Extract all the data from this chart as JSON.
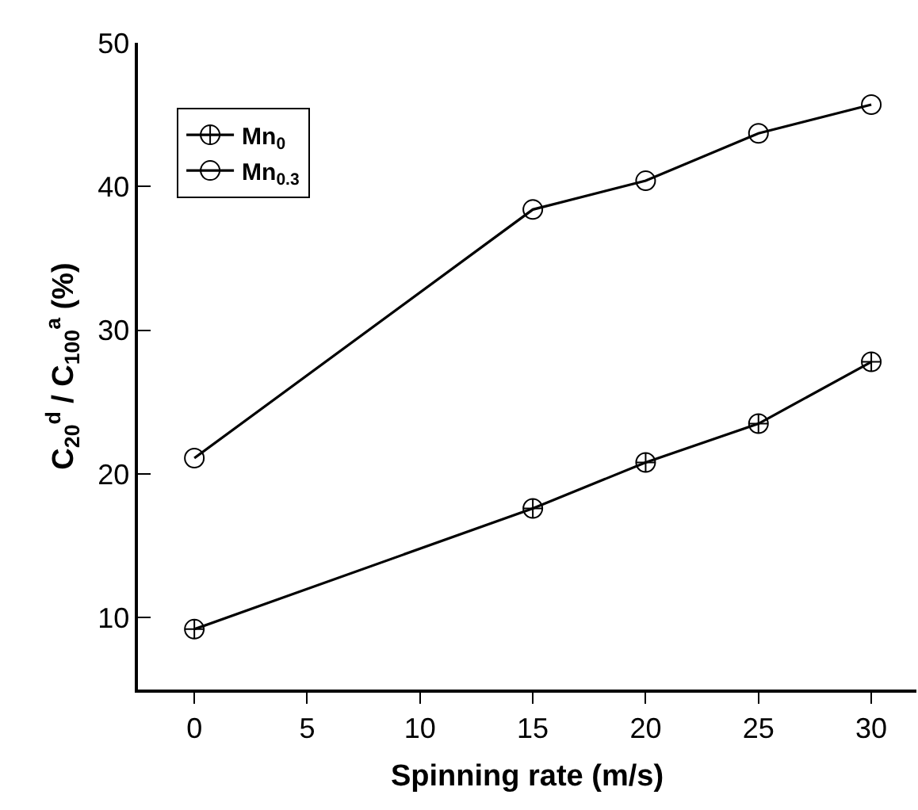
{
  "chart_data": {
    "type": "line",
    "xlabel": "Spinning rate (m/s)",
    "ylabel": "C$_{20}$$^{d}$ / C$_{100}$$^{a}$ (%)",
    "x": [
      0,
      15,
      20,
      25,
      30
    ],
    "series": [
      {
        "name": "Mn$_{0}$",
        "color": "#000000",
        "marker": "cross",
        "values": [
          9.2,
          17.6,
          20.8,
          23.5,
          27.8
        ]
      },
      {
        "name": "Mn$_{0.3}$",
        "color": "#000000",
        "marker": "circle",
        "values": [
          21.1,
          38.4,
          40.4,
          43.7,
          45.7
        ]
      }
    ],
    "xlim": [
      -2.5,
      32
    ],
    "xticks": [
      0,
      5,
      10,
      15,
      20,
      25,
      30
    ],
    "ylim": [
      5,
      50
    ],
    "yticks": [
      10,
      20,
      30,
      40,
      50
    ],
    "grid": false,
    "legend": "top left",
    "line_style": "solid"
  }
}
